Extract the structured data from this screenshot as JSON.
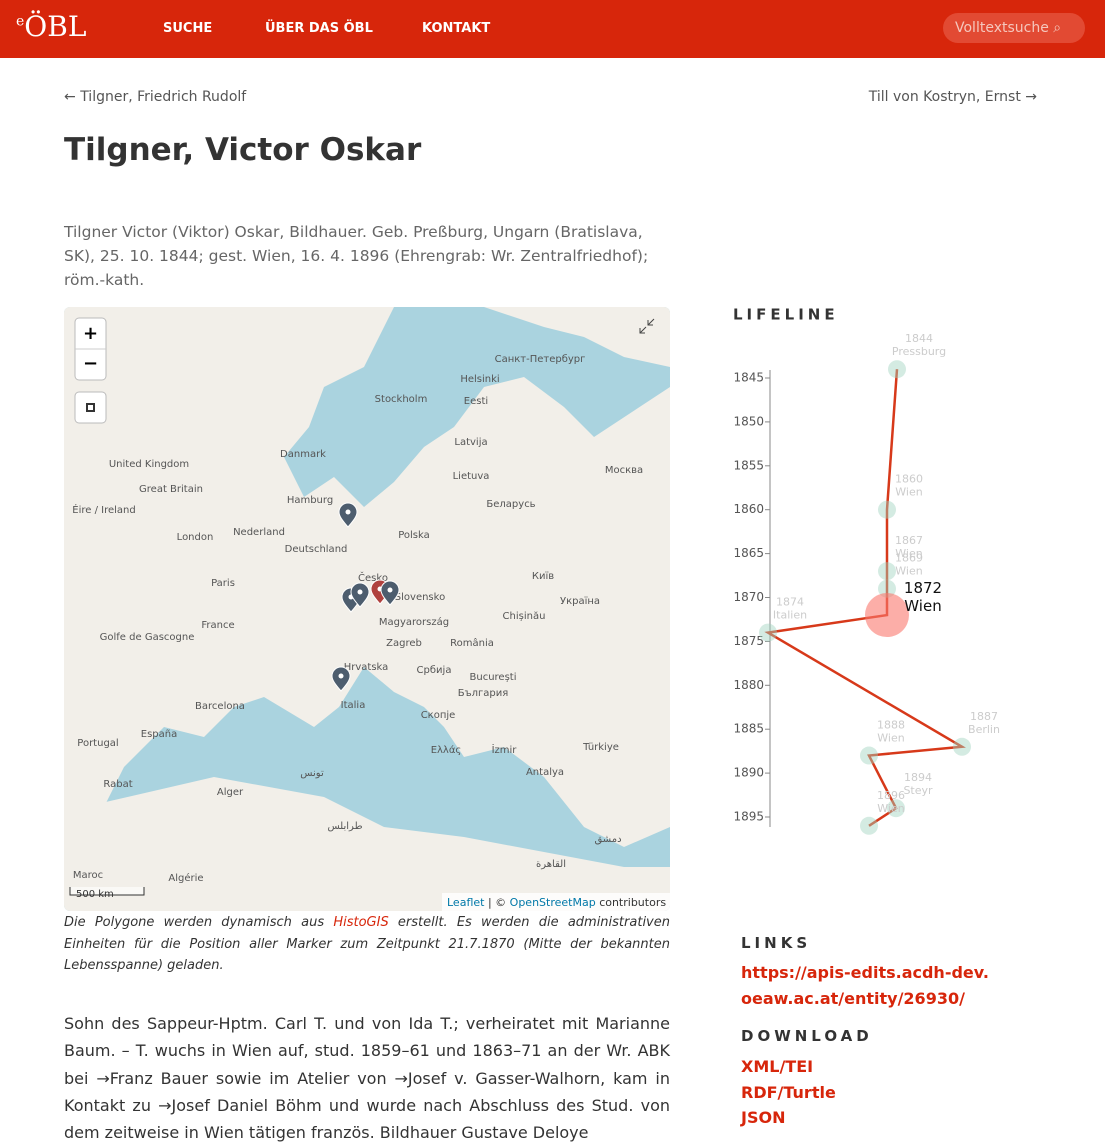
{
  "nav": {
    "logo_mark": "e",
    "logo": "ÖBL",
    "items": [
      "SUCHE",
      "ÜBER DAS ÖBL",
      "KONTAKT"
    ],
    "search": "Volltextsuche"
  },
  "prev": "Tilgner, Friedrich Rudolf",
  "next": "Till von Kostryn, Ernst",
  "title": "Tilgner, Victor Oskar",
  "intro": "Tilgner Victor (Viktor) Oskar, Bildhauer. Geb. Preßburg, Ungarn (Bratislava, SK), 25. 10. 1844; gest. Wien, 16. 4. 1896 (Ehrengrab: Wr. Zentralfriedhof); röm.-kath.",
  "map": {
    "zoom_in": "+",
    "zoom_out": "−",
    "scale": "500 km",
    "attribution": [
      "Leaflet",
      "| ©",
      "OpenStreetMap",
      "contributors"
    ],
    "labels": [
      "Helsinki",
      "Санкт-Петербург",
      "Stockholm",
      "Eesti",
      "Latvija",
      "Danmark",
      "Lietuva",
      "Москва",
      "United Kingdom",
      "Great Britain",
      "Éire / Ireland",
      "Hamburg",
      "Беларусь",
      "Nederland",
      "London",
      "Polska",
      "Deutschland",
      "Київ",
      "Česko",
      "Paris",
      "Slovensko",
      "Україна",
      "Chișinău",
      "Magyarország",
      "France",
      "Zagreb",
      "România",
      "Golfe de Gascogne",
      "București",
      "Hrvatska",
      "Србија",
      "България",
      "Italia",
      "Barcelona",
      "España",
      "Portugal",
      "Скопје",
      "Ελλάς",
      "İzmir",
      "Türkiye",
      "Antalya",
      "Alger",
      "Rabat",
      "تونس",
      "طرابلس",
      "Maroc",
      "Algérie",
      "دمشق",
      "القاهرة"
    ]
  },
  "caption": [
    "Die Polygone werden dynamisch aus ",
    "HistoGIS",
    " erstellt. Es werden die administrativen Einheiten für die Position aller Marker zum Zeitpunkt 21.7.1870 (Mitte der bekannten Lebensspanne) geladen."
  ],
  "body": "Sohn des Sappeur-Hptm. Carl T. und von Ida T.; verheiratet mit Marianne Baum. – T. wuchs in Wien auf, stud. 1859–61 und 1863–71 an der Wr. ABK bei →Franz Bauer sowie im Atelier von →Josef v. Gasser-Walhorn, kam in Kontakt zu →Josef Daniel Böhm und wurde nach Abschluss des Stud. von dem zeitweise in Wien tätigen französ. Bildhauer Gustave Deloye",
  "lifeline": {
    "title": "LIFELINE",
    "ylim": [
      1845,
      1895
    ],
    "yticks": [
      1845,
      1850,
      1855,
      1860,
      1865,
      1870,
      1875,
      1880,
      1885,
      1890,
      1895
    ],
    "events": [
      {
        "year": 1844,
        "place": "Pressburg"
      },
      {
        "year": 1860,
        "place": "Wien"
      },
      {
        "year": 1867,
        "place": "Wien"
      },
      {
        "year": 1869,
        "place": "Wien"
      },
      {
        "year": 1872,
        "place": "Wien"
      },
      {
        "year": 1874,
        "place": "Italien"
      },
      {
        "year": 1887,
        "place": "Berlin"
      },
      {
        "year": 1888,
        "place": "Wien"
      },
      {
        "year": 1894,
        "place": "Steyr"
      },
      {
        "year": 1896,
        "place": "Wien"
      }
    ]
  },
  "links": {
    "title": "LINKS",
    "url": "https://apis-edits.acdh-dev.oeaw.ac.at/entity/26930/"
  },
  "download": {
    "title": "DOWNLOAD",
    "items": [
      "XML/TEI",
      "RDF/Turtle",
      "JSON"
    ]
  }
}
